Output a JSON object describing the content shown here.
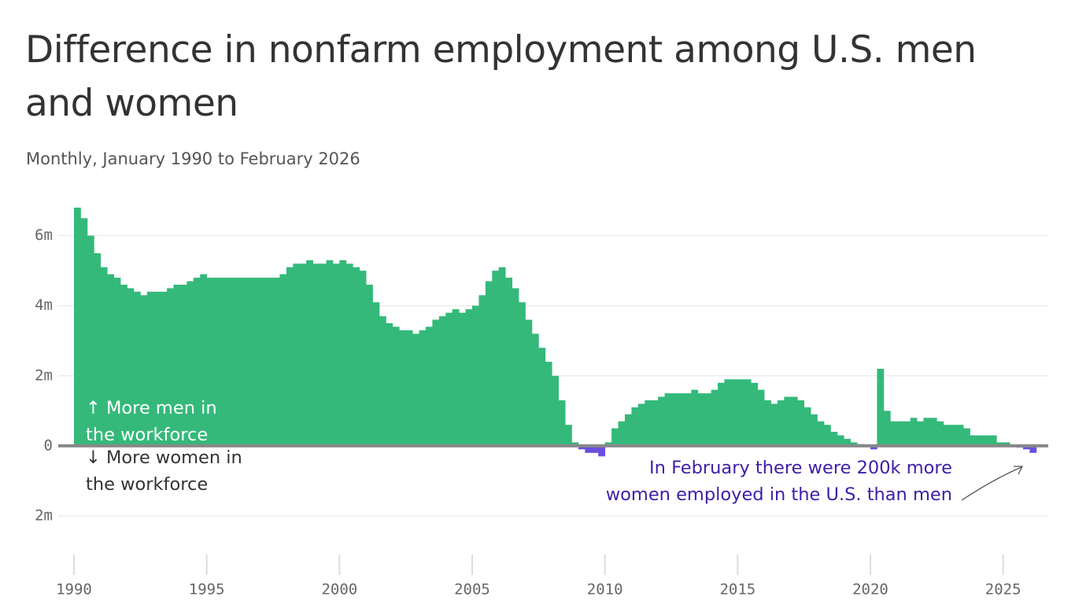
{
  "chart_data": {
    "type": "bar",
    "title": "Difference in nonfarm employment among U.S. men and women",
    "subtitle": "Monthly, January 1990 to February 2026",
    "annotation_up": "↑ More men in the workforce",
    "annotation_down": "↓ More women in the workforce",
    "annotation_note": "In February there were 200k more women employed in the U.S. than men",
    "positive_color": "#34b97a",
    "negative_color": "#6b4fe0",
    "bar_width": 0.25,
    "x": [
      1990,
      1990.25,
      1990.5,
      1990.75,
      1991,
      1991.25,
      1991.5,
      1991.75,
      1992,
      1992.25,
      1992.5,
      1992.75,
      1993,
      1993.25,
      1993.5,
      1993.75,
      1994,
      1994.25,
      1994.5,
      1994.75,
      1995,
      1995.25,
      1995.5,
      1995.75,
      1996,
      1996.25,
      1996.5,
      1996.75,
      1997,
      1997.25,
      1997.5,
      1997.75,
      1998,
      1998.25,
      1998.5,
      1998.75,
      1999,
      1999.25,
      1999.5,
      1999.75,
      2000,
      2000.25,
      2000.5,
      2000.75,
      2001,
      2001.25,
      2001.5,
      2001.75,
      2002,
      2002.25,
      2002.5,
      2002.75,
      2003,
      2003.25,
      2003.5,
      2003.75,
      2004,
      2004.25,
      2004.5,
      2004.75,
      2005,
      2005.25,
      2005.5,
      2005.75,
      2006,
      2006.25,
      2006.5,
      2006.75,
      2007,
      2007.25,
      2007.5,
      2007.75,
      2008,
      2008.25,
      2008.5,
      2008.75,
      2009,
      2009.25,
      2009.5,
      2009.75,
      2010,
      2010.25,
      2010.5,
      2010.75,
      2011,
      2011.25,
      2011.5,
      2011.75,
      2012,
      2012.25,
      2012.5,
      2012.75,
      2013,
      2013.25,
      2013.5,
      2013.75,
      2014,
      2014.25,
      2014.5,
      2014.75,
      2015,
      2015.25,
      2015.5,
      2015.75,
      2016,
      2016.25,
      2016.5,
      2016.75,
      2017,
      2017.25,
      2017.5,
      2017.75,
      2018,
      2018.25,
      2018.5,
      2018.75,
      2019,
      2019.25,
      2019.5,
      2019.75,
      2020,
      2020.25,
      2020.5,
      2020.75,
      2021,
      2021.25,
      2021.5,
      2021.75,
      2022,
      2022.25,
      2022.5,
      2022.75,
      2023,
      2023.25,
      2023.5,
      2023.75,
      2024,
      2024.25,
      2024.5,
      2024.75,
      2025,
      2025.25,
      2025.5,
      2025.75,
      2026
    ],
    "values": [
      6.8,
      6.5,
      6.0,
      5.5,
      5.1,
      4.9,
      4.8,
      4.6,
      4.5,
      4.4,
      4.3,
      4.4,
      4.4,
      4.4,
      4.5,
      4.6,
      4.6,
      4.7,
      4.8,
      4.9,
      4.8,
      4.8,
      4.8,
      4.8,
      4.8,
      4.8,
      4.8,
      4.8,
      4.8,
      4.8,
      4.8,
      4.9,
      5.1,
      5.2,
      5.2,
      5.3,
      5.2,
      5.2,
      5.3,
      5.2,
      5.3,
      5.2,
      5.1,
      5.0,
      4.6,
      4.1,
      3.7,
      3.5,
      3.4,
      3.3,
      3.3,
      3.2,
      3.3,
      3.4,
      3.6,
      3.7,
      3.8,
      3.9,
      3.8,
      3.9,
      4.0,
      4.3,
      4.7,
      5.0,
      5.1,
      4.8,
      4.5,
      4.1,
      3.6,
      3.2,
      2.8,
      2.4,
      2.0,
      1.3,
      0.6,
      0.1,
      -0.1,
      -0.2,
      -0.2,
      -0.3,
      0.1,
      0.5,
      0.7,
      0.9,
      1.1,
      1.2,
      1.3,
      1.3,
      1.4,
      1.5,
      1.5,
      1.5,
      1.5,
      1.6,
      1.5,
      1.5,
      1.6,
      1.8,
      1.9,
      1.9,
      1.9,
      1.9,
      1.8,
      1.6,
      1.3,
      1.2,
      1.3,
      1.4,
      1.4,
      1.3,
      1.1,
      0.9,
      0.7,
      0.6,
      0.4,
      0.3,
      0.2,
      0.1,
      0.05,
      0.02,
      -0.1,
      2.2,
      1.0,
      0.7,
      0.7,
      0.7,
      0.8,
      0.7,
      0.8,
      0.8,
      0.7,
      0.6,
      0.6,
      0.6,
      0.5,
      0.3,
      0.3,
      0.3,
      0.3,
      0.1,
      0.1,
      0.02,
      -0.05,
      -0.1,
      -0.2
    ],
    "xlim": [
      1990,
      2026.7
    ],
    "xticks": [
      1990,
      1995,
      2000,
      2005,
      2010,
      2015,
      2020,
      2025
    ],
    "ylim": [
      -3.1,
      6.8
    ],
    "yticks": [
      {
        "value": -2,
        "label": "2m"
      },
      0,
      {
        "value": 2,
        "label": "2m"
      },
      {
        "value": 4,
        "label": "4m"
      },
      {
        "value": 6,
        "label": "6m"
      }
    ],
    "grid": true
  }
}
